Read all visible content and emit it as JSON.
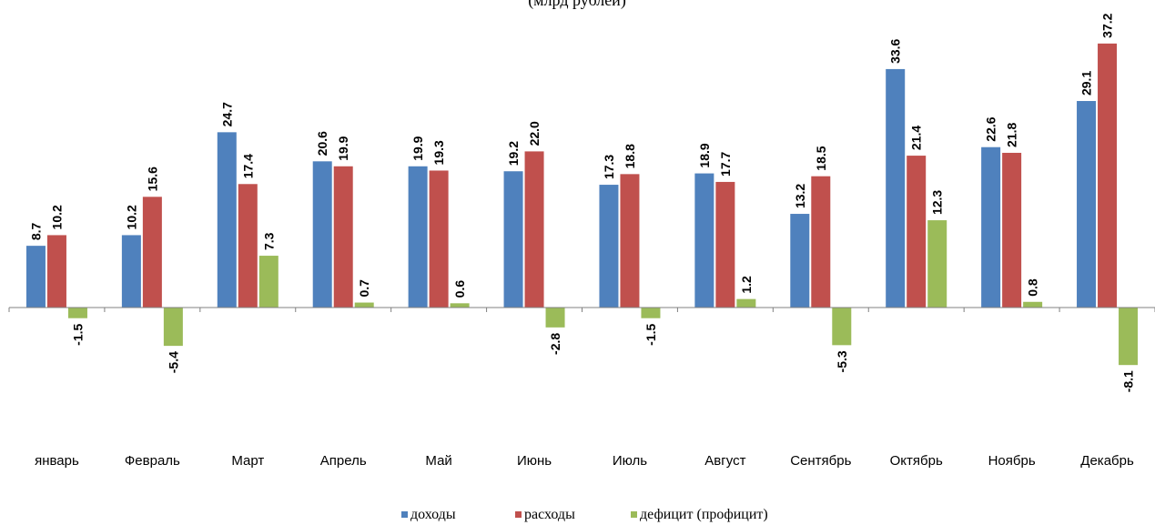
{
  "chart_data": {
    "type": "bar",
    "subtitle": "(млрд рублей)",
    "categories": [
      "январь",
      "Февраль",
      "Март",
      "Апрель",
      "Май",
      "Июнь",
      "Июль",
      "Август",
      "Сентябрь",
      "Октябрь",
      "Ноябрь",
      "Декабрь"
    ],
    "series": [
      {
        "name": "доходы",
        "color": "#4F81BD",
        "values": [
          8.7,
          10.2,
          24.7,
          20.6,
          19.9,
          19.2,
          17.3,
          18.9,
          13.2,
          33.6,
          22.6,
          29.1
        ]
      },
      {
        "name": "расходы",
        "color": "#C0504D",
        "values": [
          10.2,
          15.6,
          17.4,
          19.9,
          19.3,
          22.0,
          18.8,
          17.7,
          18.5,
          21.4,
          21.8,
          37.2
        ]
      },
      {
        "name": "дефицит (профицит)",
        "color": "#9BBB59",
        "values": [
          -1.5,
          -5.4,
          7.3,
          0.7,
          0.6,
          -2.8,
          -1.5,
          1.2,
          -5.3,
          12.3,
          0.8,
          -8.1
        ]
      }
    ],
    "ylim": [
      -12,
      40
    ],
    "grid": false,
    "legend_position": "bottom"
  }
}
